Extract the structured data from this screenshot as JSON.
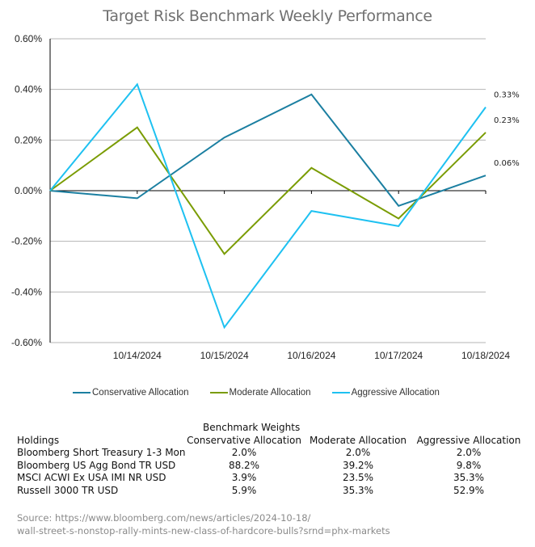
{
  "chart_data": {
    "type": "line",
    "title": "Target Risk Benchmark Weekly Performance",
    "xlabel": "",
    "ylabel": "",
    "x": [
      "",
      "10/14/2024",
      "10/15/2024",
      "10/16/2024",
      "10/17/2024",
      "10/18/2024"
    ],
    "yticks": [
      "0.60%",
      "0.40%",
      "0.20%",
      "0.00%",
      "-0.20%",
      "-0.40%",
      "-0.60%"
    ],
    "ylim": [
      -0.6,
      0.6
    ],
    "grid": true,
    "legend_position": "bottom",
    "series": [
      {
        "name": "Conservative Allocation",
        "color": "#1b7fa1",
        "values": [
          0.0,
          -0.03,
          0.21,
          0.38,
          -0.06,
          0.06
        ],
        "end_label": "0.06%"
      },
      {
        "name": "Moderate Allocation",
        "color": "#7a9c03",
        "values": [
          0.0,
          0.25,
          -0.25,
          0.09,
          -0.11,
          0.23
        ],
        "end_label": "0.23%"
      },
      {
        "name": "Aggressive Allocation",
        "color": "#1ec1f1",
        "values": [
          0.0,
          0.42,
          -0.54,
          -0.08,
          -0.14,
          0.33
        ],
        "end_label": "0.33%"
      }
    ]
  },
  "table": {
    "super_header": "Benchmark Weights",
    "headers": [
      "Holdings",
      "Conservative Allocation",
      "Moderate Allocation",
      "Aggressive Allocation"
    ],
    "rows": [
      [
        "Bloomberg Short Treasury 1-3 Mon",
        "2.0%",
        "2.0%",
        "2.0%"
      ],
      [
        "Bloomberg US Agg Bond TR USD",
        "88.2%",
        "39.2%",
        "9.8%"
      ],
      [
        "MSCI ACWI Ex USA IMI NR USD",
        "3.9%",
        "23.5%",
        "35.3%"
      ],
      [
        "Russell 3000 TR USD",
        "5.9%",
        "35.3%",
        "52.9%"
      ]
    ]
  },
  "source": {
    "line1": "Source: https://www.bloomberg.com/news/articles/2024-10-18/",
    "line2": "wall-street-s-nonstop-rally-mints-new-class-of-hardcore-bulls?srnd=phx-markets"
  }
}
